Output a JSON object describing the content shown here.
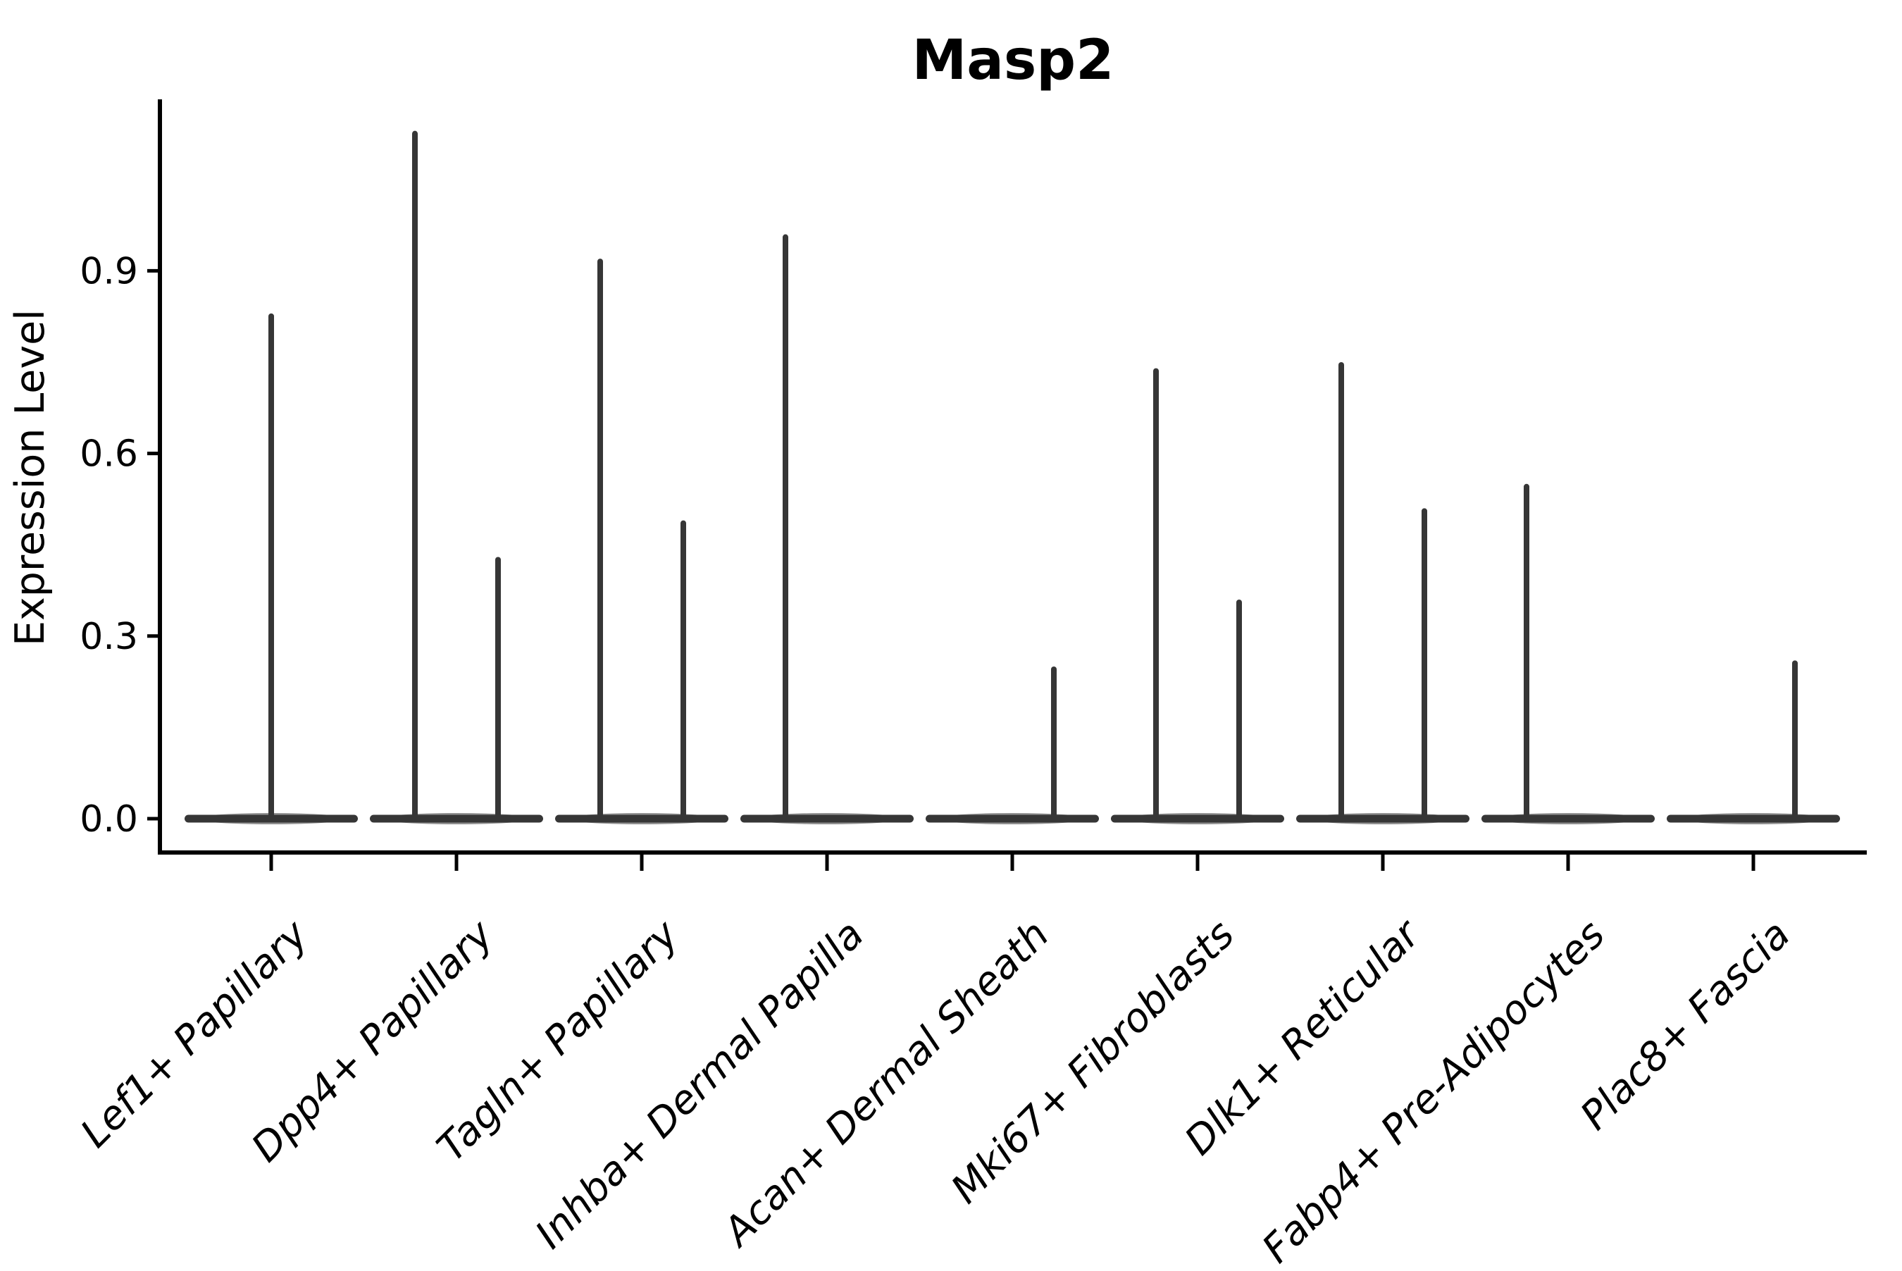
{
  "chart_data": {
    "type": "violin",
    "title": "Masp2",
    "ylabel": "Expression Level",
    "xlabel": "",
    "categories": [
      "Lef1+ Papillary",
      "Dpp4+ Papillary",
      "Tagln+ Papillary",
      "Inhba+ Dermal Papilla",
      "Acan+ Dermal Sheath",
      "Mki67+ Fibroblasts",
      "Dlk1+ Reticular",
      "Fabp4+ Pre-Adipocytes",
      "Plac8+ Fascia"
    ],
    "y_tick_labels": [
      "0.0",
      "0.3",
      "0.6",
      "0.9"
    ],
    "y_tick_values": [
      0.0,
      0.3,
      0.6,
      0.9
    ],
    "ylim": [
      -0.06,
      1.18
    ],
    "grid": false,
    "legend_position": "none",
    "x_label_rotation": 45,
    "x_label_style": "italic",
    "baseline_value": 0.0,
    "violins": [
      {
        "category": "Lef1+ Papillary",
        "spikes": [
          {
            "pos": "center",
            "max": 0.83
          }
        ]
      },
      {
        "category": "Dpp4+ Papillary",
        "spikes": [
          {
            "pos": "left",
            "max": 1.13
          },
          {
            "pos": "right",
            "max": 0.43
          }
        ]
      },
      {
        "category": "Tagln+ Papillary",
        "spikes": [
          {
            "pos": "left",
            "max": 0.92
          },
          {
            "pos": "right",
            "max": 0.49
          }
        ]
      },
      {
        "category": "Inhba+ Dermal Papilla",
        "spikes": [
          {
            "pos": "left",
            "max": 0.96
          }
        ]
      },
      {
        "category": "Acan+ Dermal Sheath",
        "spikes": [
          {
            "pos": "right",
            "max": 0.25
          }
        ]
      },
      {
        "category": "Mki67+ Fibroblasts",
        "spikes": [
          {
            "pos": "left",
            "max": 0.74
          },
          {
            "pos": "right",
            "max": 0.36
          }
        ]
      },
      {
        "category": "Dlk1+ Reticular",
        "spikes": [
          {
            "pos": "left",
            "max": 0.75
          },
          {
            "pos": "right",
            "max": 0.51
          }
        ]
      },
      {
        "category": "Fabp4+ Pre-Adipocytes",
        "spikes": [
          {
            "pos": "left",
            "max": 0.55
          }
        ]
      },
      {
        "category": "Plac8+ Fascia",
        "spikes": [
          {
            "pos": "right",
            "max": 0.26
          }
        ]
      }
    ],
    "colors": {
      "violin": "#363636",
      "axis": "#000000",
      "text": "#000000",
      "background": "#ffffff"
    }
  }
}
